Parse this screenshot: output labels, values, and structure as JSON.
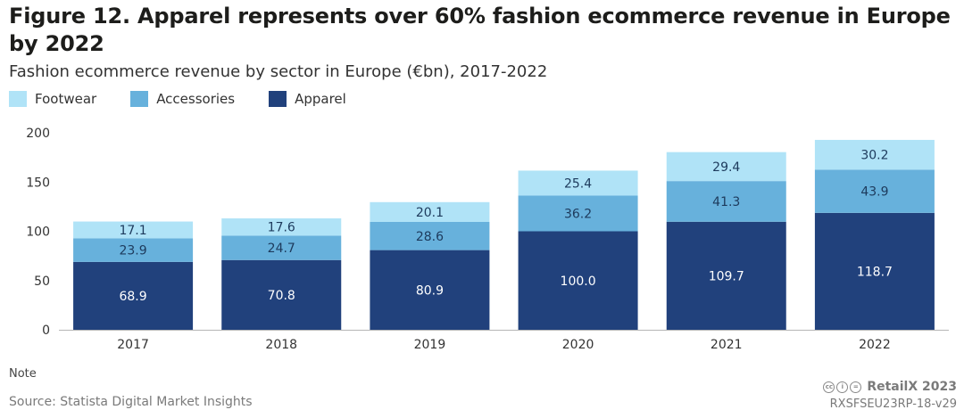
{
  "header": {
    "title": "Figure 12. Apparel represents over 60% fashion ecommerce revenue in Europe by 2022",
    "subtitle": "Fashion ecommerce revenue by sector in Europe (€bn), 2017-2022"
  },
  "legend": {
    "items": [
      {
        "label": "Footwear",
        "color": "#b0e3f7"
      },
      {
        "label": "Accessories",
        "color": "#67b1dc"
      },
      {
        "label": "Apparel",
        "color": "#21417c"
      }
    ]
  },
  "chart_data": {
    "type": "bar",
    "stacked": true,
    "title": "Figure 12. Apparel represents over 60% fashion ecommerce revenue in Europe by 2022",
    "subtitle": "Fashion ecommerce revenue by sector in Europe (€bn), 2017-2022",
    "categories": [
      "2017",
      "2018",
      "2019",
      "2020",
      "2021",
      "2022"
    ],
    "series": [
      {
        "name": "Apparel",
        "color": "#21417c",
        "label_color": "#ffffff",
        "values": [
          68.9,
          70.8,
          80.9,
          100.0,
          109.7,
          118.7
        ]
      },
      {
        "name": "Accessories",
        "color": "#67b1dc",
        "label_color": "#1d3a5c",
        "values": [
          23.9,
          24.7,
          28.6,
          36.2,
          41.3,
          43.9
        ]
      },
      {
        "name": "Footwear",
        "color": "#b0e3f7",
        "label_color": "#1d3a5c",
        "values": [
          17.1,
          17.6,
          20.1,
          25.4,
          29.4,
          30.2
        ]
      }
    ],
    "value_labels": [
      [
        "68.9",
        "70.8",
        "80.9",
        "100.0",
        "109.7",
        "118.7"
      ],
      [
        "23.9",
        "24.7",
        "28.6",
        "36.2",
        "41.3",
        "43.9"
      ],
      [
        "17.1",
        "17.6",
        "20.1",
        "25.4",
        "29.4",
        "30.2"
      ]
    ],
    "y_ticks": [
      0,
      50,
      100,
      150,
      200
    ],
    "ylim": [
      0,
      200
    ],
    "xlabel": "",
    "ylabel": "",
    "legend_position": "top-left",
    "grid": false
  },
  "footer": {
    "note": "Note",
    "source": "Source: Statista Digital Market Insights",
    "brand": "RetailX 2023",
    "license_icons": [
      "cc",
      "by",
      "nd"
    ],
    "code": "RXSFSEU23RP-18-v29"
  }
}
